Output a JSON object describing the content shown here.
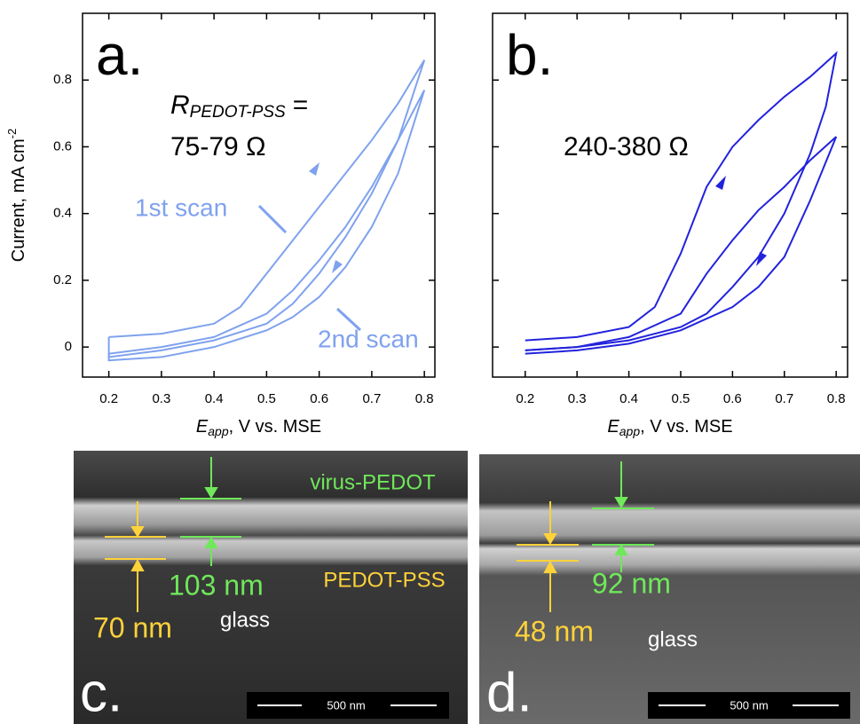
{
  "chart_data": [
    {
      "type": "line",
      "panel": "a.",
      "annotations": [
        "R",
        "PEDOT-PSS",
        "=",
        "75-79 Ω"
      ],
      "y_label": [
        "Current, mA cm",
        "-2"
      ],
      "x_label": [
        "E",
        "app",
        ", V vs. MSE"
      ],
      "xlim": [
        0.15,
        0.82
      ],
      "ylim": [
        -0.09,
        1.0
      ],
      "xticks": [
        0.2,
        0.3,
        0.4,
        0.5,
        0.6,
        0.7,
        0.8
      ],
      "yticks": [
        0.0,
        0.2,
        0.4,
        0.6,
        0.8
      ],
      "series": [
        {
          "name": "1st scan",
          "color": "#7fa2ee",
          "x": [
            0.2,
            0.3,
            0.4,
            0.45,
            0.5,
            0.55,
            0.6,
            0.65,
            0.7,
            0.75,
            0.8,
            0.75,
            0.7,
            0.65,
            0.6,
            0.55,
            0.5,
            0.4,
            0.3,
            0.2,
            0.2
          ],
          "values": [
            0.03,
            0.04,
            0.07,
            0.12,
            0.22,
            0.32,
            0.42,
            0.52,
            0.62,
            0.73,
            0.86,
            0.62,
            0.46,
            0.33,
            0.22,
            0.13,
            0.07,
            0.02,
            -0.01,
            -0.03,
            0.03
          ]
        },
        {
          "name": "2nd scan",
          "color": "#7fa2ee",
          "x": [
            0.2,
            0.3,
            0.4,
            0.5,
            0.55,
            0.6,
            0.65,
            0.7,
            0.75,
            0.8,
            0.75,
            0.7,
            0.65,
            0.6,
            0.55,
            0.5,
            0.4,
            0.3,
            0.2,
            0.2
          ],
          "values": [
            -0.02,
            0.0,
            0.03,
            0.1,
            0.17,
            0.26,
            0.36,
            0.48,
            0.62,
            0.77,
            0.52,
            0.36,
            0.24,
            0.15,
            0.09,
            0.05,
            0.0,
            -0.03,
            -0.04,
            -0.02
          ]
        }
      ]
    },
    {
      "type": "line",
      "panel": "b.",
      "annotations": [
        "240-380 Ω"
      ],
      "x_label": [
        "E",
        "app",
        ", V vs. MSE"
      ],
      "xlim": [
        0.137,
        0.822
      ],
      "ylim": [
        -0.09,
        1.0
      ],
      "xticks": [
        0.2,
        0.3,
        0.4,
        0.5,
        0.6,
        0.7,
        0.8
      ],
      "yticks": [
        0.0,
        0.2,
        0.4,
        0.6,
        0.8
      ],
      "series": [
        {
          "color": "#2222dd",
          "x": [
            0.2,
            0.3,
            0.4,
            0.45,
            0.5,
            0.55,
            0.6,
            0.65,
            0.7,
            0.75,
            0.8,
            0.78,
            0.75,
            0.7,
            0.65,
            0.6,
            0.55,
            0.5,
            0.4,
            0.3,
            0.2
          ],
          "values": [
            0.02,
            0.03,
            0.06,
            0.12,
            0.28,
            0.48,
            0.6,
            0.68,
            0.75,
            0.81,
            0.88,
            0.72,
            0.58,
            0.4,
            0.27,
            0.18,
            0.1,
            0.06,
            0.02,
            0.0,
            -0.01
          ]
        },
        {
          "color": "#2222dd",
          "x": [
            0.2,
            0.3,
            0.4,
            0.5,
            0.55,
            0.6,
            0.65,
            0.7,
            0.75,
            0.8,
            0.75,
            0.7,
            0.65,
            0.6,
            0.5,
            0.4,
            0.3,
            0.2
          ],
          "values": [
            -0.01,
            0.0,
            0.03,
            0.1,
            0.22,
            0.32,
            0.41,
            0.48,
            0.56,
            0.63,
            0.44,
            0.27,
            0.18,
            0.12,
            0.05,
            0.01,
            -0.01,
            -0.02
          ]
        }
      ]
    }
  ],
  "micrographs": [
    {
      "panel": "c.",
      "top_layer": "virus-PEDOT",
      "top_thickness": "103 nm",
      "bottom_layer": "PEDOT-PSS",
      "bottom_thickness": "70 nm",
      "substrate": "glass",
      "scale_bar": "500 nm"
    },
    {
      "panel": "d.",
      "top_thickness": "92 nm",
      "bottom_thickness": "48 nm",
      "substrate": "glass",
      "scale_bar": "500 nm"
    }
  ]
}
